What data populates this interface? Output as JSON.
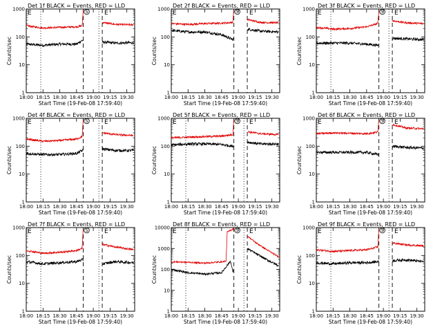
{
  "figure": {
    "background": "#ffffff",
    "colors": {
      "events": "#000000",
      "lld": "#e00000",
      "axes": "#000000"
    }
  },
  "panel_text": {
    "xlabel": "Start Time (19-Feb-08 17:59:40)",
    "ylabel": "Counts/sec",
    "xticks": [
      "18:00",
      "18:15",
      "18:30",
      "18:45",
      "19:00",
      "19:15",
      "19:30"
    ],
    "yticks_small": [
      "1",
      "10",
      "100",
      "1000"
    ],
    "yticks_large": [
      "1",
      "10",
      "100",
      "1000",
      "10000"
    ],
    "markers": {
      "left": "E",
      "circle": "S",
      "right": "E"
    }
  },
  "chart_data": [
    {
      "type": "line",
      "title": "Det 1f BLACK = Events, RED = LLD",
      "xlabel": "Start Time (19-Feb-08 17:59:40)",
      "ylabel": "Counts/sec",
      "yscale": "log",
      "ylim": [
        1,
        1000
      ],
      "xlim": [
        "18:00",
        "19:37"
      ],
      "x_ticks": [
        "18:00",
        "18:15",
        "18:30",
        "18:45",
        "19:00",
        "19:15",
        "19:30"
      ],
      "vlines": [
        {
          "x": "18:13",
          "style": "dotted"
        },
        {
          "x": "18:51",
          "style": "dashed"
        },
        {
          "x": "19:05",
          "style": "dotted"
        },
        {
          "x": "19:08",
          "style": "dashed"
        }
      ],
      "gaps": [
        [
          "18:51",
          "19:08"
        ]
      ],
      "series": [
        {
          "x": [
            "18:00",
            "18:15",
            "18:30",
            "18:45",
            "18:50",
            "19:08",
            "19:20",
            "19:36"
          ],
          "values": [
            55,
            50,
            55,
            55,
            75,
            65,
            60,
            62
          ]
        },
        {
          "x": [
            "18:00",
            "18:15",
            "18:30",
            "18:45",
            "18:50",
            "18:51",
            "19:05",
            "19:08",
            "19:20",
            "19:36"
          ],
          "values": [
            250,
            210,
            220,
            230,
            250,
            900,
            950,
            330,
            280,
            270
          ]
        }
      ]
    },
    {
      "type": "line",
      "title": "Det 2f BLACK = Events, RED = LLD",
      "xlabel": "Start Time (19-Feb-08 17:59:40)",
      "ylabel": "Counts/sec",
      "yscale": "log",
      "ylim": [
        1,
        1000
      ],
      "xlim": [
        "18:00",
        "19:37"
      ],
      "x_ticks": [
        "18:00",
        "18:15",
        "18:30",
        "18:45",
        "19:00",
        "19:15",
        "19:30"
      ],
      "vlines": [
        {
          "x": "18:56",
          "style": "dashed"
        },
        {
          "x": "19:08",
          "style": "dashed"
        }
      ],
      "gaps": [
        [
          "18:56",
          "19:08"
        ]
      ],
      "series": [
        {
          "x": [
            "18:00",
            "18:15",
            "18:30",
            "18:45",
            "18:55",
            "19:08",
            "19:20",
            "19:36"
          ],
          "values": [
            170,
            150,
            150,
            120,
            80,
            190,
            160,
            150
          ]
        },
        {
          "x": [
            "18:00",
            "18:15",
            "18:30",
            "18:45",
            "18:55",
            "18:56",
            "19:05",
            "19:08",
            "19:20",
            "19:36"
          ],
          "values": [
            300,
            280,
            300,
            310,
            330,
            900,
            950,
            420,
            330,
            320
          ]
        }
      ]
    },
    {
      "type": "line",
      "title": "Det 3f BLACK = Events, RED = LLD",
      "xlabel": "Start Time (19-Feb-08 17:59:40)",
      "ylabel": "Counts/sec",
      "yscale": "log",
      "ylim": [
        1,
        1000
      ],
      "xlim": [
        "18:00",
        "19:37"
      ],
      "x_ticks": [
        "18:00",
        "18:15",
        "18:30",
        "18:45",
        "19:00",
        "19:15",
        "19:30"
      ],
      "vlines": [
        {
          "x": "18:13",
          "style": "dotted"
        },
        {
          "x": "18:56",
          "style": "dashed"
        },
        {
          "x": "19:05",
          "style": "dotted"
        },
        {
          "x": "19:08",
          "style": "dashed"
        }
      ],
      "gaps": [
        [
          "18:56",
          "19:08"
        ]
      ],
      "series": [
        {
          "x": [
            "18:00",
            "18:15",
            "18:30",
            "18:45",
            "18:55",
            "19:08",
            "19:20",
            "19:36"
          ],
          "values": [
            60,
            60,
            60,
            55,
            50,
            90,
            85,
            80
          ]
        },
        {
          "x": [
            "18:00",
            "18:15",
            "18:30",
            "18:45",
            "18:55",
            "18:56",
            "19:05",
            "19:08",
            "19:20",
            "19:36"
          ],
          "values": [
            220,
            190,
            200,
            230,
            300,
            900,
            950,
            380,
            320,
            300
          ]
        }
      ]
    },
    {
      "type": "line",
      "title": "Det 4f BLACK = Events, RED = LLD",
      "xlabel": "Start Time (19-Feb-08 17:59:40)",
      "ylabel": "Counts/sec",
      "yscale": "log",
      "ylim": [
        1,
        1000
      ],
      "xlim": [
        "18:00",
        "19:37"
      ],
      "x_ticks": [
        "18:00",
        "18:15",
        "18:30",
        "18:45",
        "19:00",
        "19:15",
        "19:30"
      ],
      "vlines": [
        {
          "x": "18:13",
          "style": "dotted"
        },
        {
          "x": "18:51",
          "style": "dashed"
        },
        {
          "x": "19:05",
          "style": "dotted"
        },
        {
          "x": "19:08",
          "style": "dashed"
        }
      ],
      "gaps": [
        [
          "18:51",
          "19:08"
        ]
      ],
      "series": [
        {
          "x": [
            "18:00",
            "18:15",
            "18:30",
            "18:45",
            "18:50",
            "19:08",
            "19:20",
            "19:36"
          ],
          "values": [
            55,
            50,
            50,
            55,
            70,
            80,
            70,
            70
          ]
        },
        {
          "x": [
            "18:00",
            "18:15",
            "18:30",
            "18:45",
            "18:50",
            "18:51",
            "19:05",
            "19:08",
            "19:20",
            "19:36"
          ],
          "values": [
            180,
            150,
            160,
            180,
            220,
            900,
            950,
            300,
            260,
            240
          ]
        }
      ]
    },
    {
      "type": "line",
      "title": "Det 5f BLACK = Events, RED = LLD",
      "xlabel": "Start Time (19-Feb-08 17:59:40)",
      "ylabel": "Counts/sec",
      "yscale": "log",
      "ylim": [
        1,
        1000
      ],
      "xlim": [
        "18:00",
        "19:37"
      ],
      "x_ticks": [
        "18:00",
        "18:15",
        "18:30",
        "18:45",
        "19:00",
        "19:15",
        "19:30"
      ],
      "vlines": [
        {
          "x": "18:13",
          "style": "dotted"
        },
        {
          "x": "18:56",
          "style": "dashed"
        },
        {
          "x": "19:05",
          "style": "dotted"
        },
        {
          "x": "19:08",
          "style": "dashed"
        }
      ],
      "gaps": [
        [
          "18:56",
          "19:08"
        ]
      ],
      "series": [
        {
          "x": [
            "18:00",
            "18:15",
            "18:30",
            "18:45",
            "18:55",
            "19:08",
            "19:20",
            "19:36"
          ],
          "values": [
            110,
            120,
            120,
            115,
            100,
            140,
            120,
            120
          ]
        },
        {
          "x": [
            "18:00",
            "18:15",
            "18:30",
            "18:45",
            "18:55",
            "18:56",
            "19:05",
            "19:08",
            "19:20",
            "19:36"
          ],
          "values": [
            200,
            210,
            220,
            230,
            260,
            900,
            950,
            330,
            280,
            260
          ]
        }
      ]
    },
    {
      "type": "line",
      "title": "Det 6f BLACK = Events, RED = LLD",
      "xlabel": "Start Time (19-Feb-08 17:59:40)",
      "ylabel": "Counts/sec",
      "yscale": "log",
      "ylim": [
        1,
        1000
      ],
      "xlim": [
        "18:00",
        "19:37"
      ],
      "x_ticks": [
        "18:00",
        "18:15",
        "18:30",
        "18:45",
        "19:00",
        "19:15",
        "19:30"
      ],
      "vlines": [
        {
          "x": "18:56",
          "style": "dashed"
        },
        {
          "x": "19:05",
          "style": "dotted"
        },
        {
          "x": "19:08",
          "style": "dashed"
        }
      ],
      "gaps": [
        [
          "18:56",
          "19:08"
        ]
      ],
      "series": [
        {
          "x": [
            "18:00",
            "18:15",
            "18:30",
            "18:45",
            "18:55",
            "19:08",
            "19:20",
            "19:36"
          ],
          "values": [
            60,
            60,
            60,
            60,
            50,
            100,
            90,
            85
          ]
        },
        {
          "x": [
            "18:00",
            "18:15",
            "18:30",
            "18:45",
            "18:55",
            "18:56",
            "19:05",
            "19:08",
            "19:20",
            "19:36"
          ],
          "values": [
            280,
            300,
            290,
            280,
            320,
            900,
            950,
            600,
            450,
            420
          ]
        }
      ]
    },
    {
      "type": "line",
      "title": "Det 7f BLACK = Events, RED = LLD",
      "xlabel": "Start Time (19-Feb-08 17:59:40)",
      "ylabel": "Counts/sec",
      "yscale": "log",
      "ylim": [
        1,
        1000
      ],
      "xlim": [
        "18:00",
        "19:37"
      ],
      "x_ticks": [
        "18:00",
        "18:15",
        "18:30",
        "18:45",
        "19:00",
        "19:15",
        "19:30"
      ],
      "vlines": [
        {
          "x": "18:13",
          "style": "dotted"
        },
        {
          "x": "18:51",
          "style": "dashed"
        },
        {
          "x": "19:05",
          "style": "dotted"
        },
        {
          "x": "19:08",
          "style": "dashed"
        }
      ],
      "gaps": [
        [
          "18:51",
          "19:08"
        ]
      ],
      "series": [
        {
          "x": [
            "18:00",
            "18:15",
            "18:30",
            "18:45",
            "18:50",
            "19:08",
            "19:20",
            "19:36"
          ],
          "values": [
            60,
            50,
            55,
            60,
            70,
            50,
            60,
            55
          ]
        },
        {
          "x": [
            "18:00",
            "18:15",
            "18:30",
            "18:45",
            "18:50",
            "18:51",
            "19:05",
            "19:08",
            "19:20",
            "19:36"
          ],
          "values": [
            150,
            120,
            130,
            150,
            180,
            900,
            950,
            250,
            200,
            160
          ]
        }
      ]
    },
    {
      "type": "line",
      "title": "Det 8f BLACK = Events, RED = LLD",
      "xlabel": "Start Time (19-Feb-08 17:59:40)",
      "ylabel": "Counts/sec",
      "yscale": "log",
      "ylim": [
        1,
        10000
      ],
      "xlim": [
        "18:00",
        "19:37"
      ],
      "x_ticks": [
        "18:00",
        "18:15",
        "18:30",
        "18:45",
        "19:00",
        "19:15",
        "19:30"
      ],
      "vlines": [
        {
          "x": "18:13",
          "style": "dotted"
        },
        {
          "x": "18:56",
          "style": "dashed"
        },
        {
          "x": "19:05",
          "style": "dotted"
        },
        {
          "x": "19:08",
          "style": "dashed"
        }
      ],
      "gaps": [
        [
          "18:56",
          "19:08"
        ]
      ],
      "series": [
        {
          "x": [
            "18:00",
            "18:15",
            "18:30",
            "18:45",
            "18:53",
            "18:55",
            "19:08",
            "19:15",
            "19:25",
            "19:36"
          ],
          "values": [
            100,
            70,
            60,
            70,
            250,
            80,
            1000,
            600,
            300,
            150
          ]
        },
        {
          "x": [
            "18:00",
            "18:15",
            "18:30",
            "18:45",
            "18:49",
            "18:50",
            "18:56",
            "19:05",
            "19:08",
            "19:15",
            "19:25",
            "19:36"
          ],
          "values": [
            230,
            220,
            200,
            230,
            250,
            6000,
            9000,
            9500,
            4000,
            2000,
            900,
            400
          ]
        }
      ]
    },
    {
      "type": "line",
      "title": "Det 9f BLACK = Events, RED = LLD",
      "xlabel": "Start Time (19-Feb-08 17:59:40)",
      "ylabel": "Counts/sec",
      "yscale": "log",
      "ylim": [
        1,
        1000
      ],
      "xlim": [
        "18:00",
        "19:37"
      ],
      "x_ticks": [
        "18:00",
        "18:15",
        "18:30",
        "18:45",
        "19:00",
        "19:15",
        "19:30"
      ],
      "vlines": [
        {
          "x": "18:13",
          "style": "dotted"
        },
        {
          "x": "18:56",
          "style": "dashed"
        },
        {
          "x": "19:05",
          "style": "dotted"
        },
        {
          "x": "19:08",
          "style": "dashed"
        }
      ],
      "gaps": [
        [
          "18:56",
          "19:08"
        ]
      ],
      "series": [
        {
          "x": [
            "18:00",
            "18:15",
            "18:30",
            "18:45",
            "18:55",
            "19:08",
            "19:20",
            "19:36"
          ],
          "values": [
            55,
            50,
            55,
            55,
            60,
            65,
            70,
            60
          ]
        },
        {
          "x": [
            "18:00",
            "18:15",
            "18:30",
            "18:45",
            "18:55",
            "18:56",
            "19:05",
            "19:08",
            "19:20",
            "19:36"
          ],
          "values": [
            160,
            140,
            150,
            160,
            200,
            900,
            950,
            280,
            240,
            220
          ]
        }
      ]
    }
  ]
}
